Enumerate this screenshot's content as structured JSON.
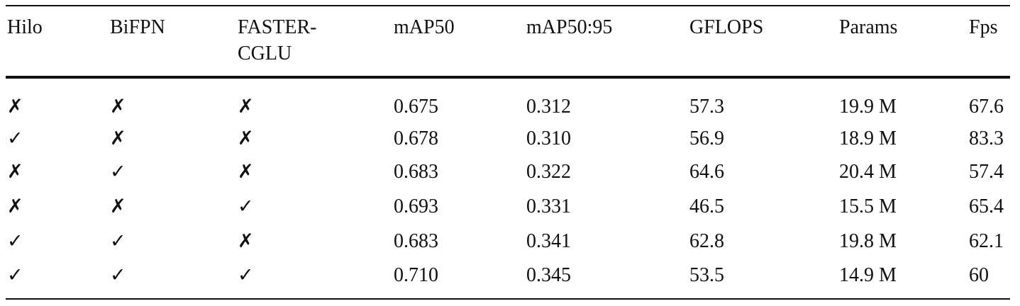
{
  "table": {
    "header": [
      "Hilo",
      "BiFPN",
      "FASTER-\nCGLU",
      "mAP50",
      "mAP50:95",
      "GFLOPS",
      "Params",
      "Fps"
    ],
    "rows": [
      [
        "✗",
        "✗",
        "✗",
        "0.675",
        "0.312",
        "57.3",
        "19.9 M",
        "67.6"
      ],
      [
        "✓",
        "✗",
        "✗",
        "0.678",
        "0.310",
        "56.9",
        "18.9 M",
        "83.3"
      ],
      [
        "✗",
        "✓",
        "✗",
        "0.683",
        "0.322",
        "64.6",
        "20.4 M",
        "57.4"
      ],
      [
        "✗",
        "✗",
        "✓",
        "0.693",
        "0.331",
        "46.5",
        "15.5 M",
        "65.4"
      ],
      [
        "✓",
        "✓",
        "✗",
        "0.683",
        "0.341",
        "62.8",
        "19.8 M",
        "62.1"
      ],
      [
        "✓",
        "✓",
        "✓",
        "0.710",
        "0.345",
        "53.5",
        "14.9 M",
        "60"
      ]
    ]
  }
}
